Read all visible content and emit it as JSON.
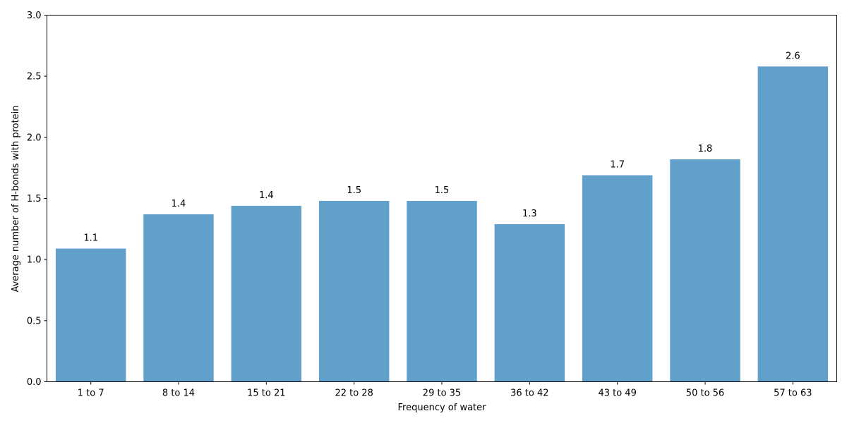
{
  "chart_data": {
    "type": "bar",
    "categories": [
      "1 to 7",
      "8 to 14",
      "15 to 21",
      "22 to 28",
      "29 to 35",
      "36 to 42",
      "43 to 49",
      "50 to 56",
      "57 to 63"
    ],
    "values": [
      1.09,
      1.37,
      1.44,
      1.48,
      1.48,
      1.29,
      1.69,
      1.82,
      2.58
    ],
    "data_labels": [
      "1.1",
      "1.4",
      "1.4",
      "1.5",
      "1.5",
      "1.3",
      "1.7",
      "1.8",
      "2.6"
    ],
    "xlabel": "Frequency of water",
    "ylabel": "Average number of H-bonds with protein",
    "ylim": [
      0,
      3.0
    ],
    "yticks": [
      "0.0",
      "0.5",
      "1.0",
      "1.5",
      "2.0",
      "2.5",
      "3.0"
    ],
    "grid": false,
    "bar_color": "#62a0cc"
  }
}
